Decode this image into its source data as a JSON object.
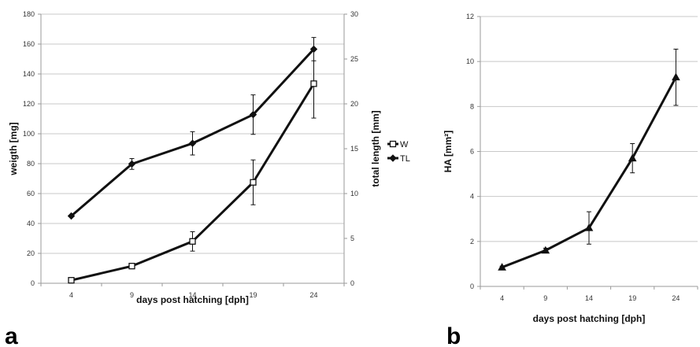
{
  "chart_data": [
    {
      "panel_label": "a",
      "type": "line",
      "x": [
        4,
        9,
        14,
        19,
        24
      ],
      "xlabel": "days post hatching [dph]",
      "ylabel": "weigth [mg]",
      "ylim": [
        0,
        180
      ],
      "yticks": [
        0,
        20,
        40,
        60,
        80,
        100,
        120,
        140,
        160,
        180
      ],
      "y2label": "total length [mm]",
      "y2lim": [
        0,
        30
      ],
      "y2ticks": [
        0,
        5,
        10,
        15,
        20,
        25,
        30
      ],
      "grid": true,
      "legend_position": "right",
      "series": [
        {
          "name": "W",
          "axis": "left",
          "marker": "square",
          "values": [
            2,
            11.5,
            28,
            67.5,
            133.5
          ],
          "error": [
            0,
            1.5,
            6.5,
            15,
            23
          ]
        },
        {
          "name": "TL",
          "axis": "right",
          "marker": "diamond",
          "values": [
            7.5,
            13.3,
            15.6,
            18.8,
            26.1
          ],
          "error": [
            0,
            0.6,
            1.3,
            2.2,
            1.3
          ]
        }
      ]
    },
    {
      "panel_label": "b",
      "type": "line",
      "x": [
        4,
        9,
        14,
        19,
        24
      ],
      "xlabel": "days post hatching [dph]",
      "ylabel": "HA [mm²]",
      "ylim": [
        0,
        12
      ],
      "yticks": [
        0,
        2,
        4,
        6,
        8,
        10,
        12
      ],
      "grid": true,
      "series": [
        {
          "marker": "triangle",
          "values": [
            0.85,
            1.6,
            2.6,
            5.7,
            9.3
          ],
          "error": [
            0.05,
            0.1,
            0.72,
            0.65,
            1.25
          ]
        }
      ]
    }
  ],
  "colors": {
    "line": "#111111",
    "grid": "#c8c8c8",
    "axis": "#9a9a9a",
    "marker_fill": "#ffffff"
  }
}
